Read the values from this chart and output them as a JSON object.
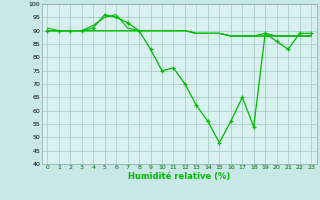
{
  "xlabel": "Humidité relative (%)",
  "bg_color": "#c8e8e8",
  "plot_bg_color": "#d8f0f0",
  "grid_color": "#a0c8c0",
  "line_color": "#00bb00",
  "xlim": [
    -0.5,
    23.5
  ],
  "ylim": [
    40,
    100
  ],
  "yticks": [
    40,
    45,
    50,
    55,
    60,
    65,
    70,
    75,
    80,
    85,
    90,
    95,
    100
  ],
  "xticks": [
    0,
    1,
    2,
    3,
    4,
    5,
    6,
    7,
    8,
    9,
    10,
    11,
    12,
    13,
    14,
    15,
    16,
    17,
    18,
    19,
    20,
    21,
    22,
    23
  ],
  "series": [
    {
      "x": [
        0,
        1,
        2,
        3,
        4,
        5,
        6,
        7,
        8,
        9,
        10,
        11,
        12,
        13,
        14,
        15,
        16,
        17,
        18,
        19,
        20,
        21,
        22,
        23
      ],
      "y": [
        90,
        90,
        90,
        90,
        91,
        96,
        95,
        93,
        90,
        83,
        75,
        76,
        70,
        62,
        56,
        48,
        56,
        65,
        54,
        89,
        86,
        83,
        89,
        89
      ],
      "marker": true
    },
    {
      "x": [
        0,
        1,
        2,
        3,
        4,
        5,
        6,
        7,
        8,
        9,
        10,
        11,
        12,
        13,
        14,
        15,
        16,
        17,
        18,
        19,
        20,
        21,
        22,
        23
      ],
      "y": [
        90,
        90,
        90,
        90,
        92,
        95,
        96,
        91,
        90,
        90,
        90,
        90,
        90,
        89,
        89,
        89,
        88,
        88,
        88,
        89,
        88,
        88,
        88,
        88
      ],
      "marker": false
    },
    {
      "x": [
        0,
        1,
        2,
        3,
        4,
        5,
        6,
        7,
        8,
        9,
        10,
        11,
        12,
        13,
        14,
        15,
        16,
        17,
        18,
        19,
        20,
        21,
        22,
        23
      ],
      "y": [
        90,
        90,
        90,
        90,
        90,
        90,
        90,
        90,
        90,
        90,
        90,
        90,
        90,
        89,
        89,
        89,
        88,
        88,
        88,
        88,
        88,
        88,
        88,
        88
      ],
      "marker": false
    },
    {
      "x": [
        0,
        1,
        2,
        3,
        4,
        5,
        6,
        7,
        8,
        9,
        10,
        11,
        12,
        13,
        14,
        15,
        16,
        17,
        18,
        19,
        20,
        21,
        22,
        23
      ],
      "y": [
        91,
        90,
        90,
        90,
        90,
        90,
        90,
        90,
        90,
        90,
        90,
        90,
        90,
        89,
        89,
        89,
        88,
        88,
        88,
        88,
        88,
        88,
        88,
        88
      ],
      "marker": false
    }
  ]
}
